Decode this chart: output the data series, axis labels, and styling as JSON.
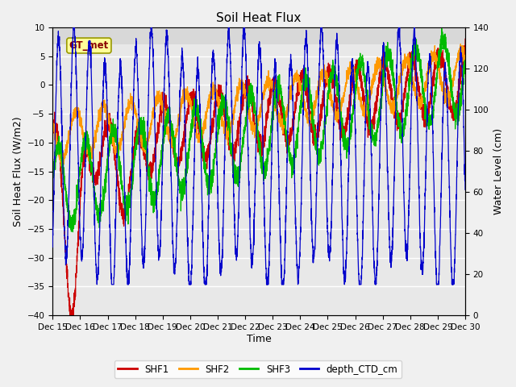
{
  "title": "Soil Heat Flux",
  "xlabel": "Time",
  "ylabel_left": "Soil Heat Flux (W/m2)",
  "ylabel_right": "Water Level (cm)",
  "ylim_left": [
    -40,
    10
  ],
  "ylim_right": [
    0,
    140
  ],
  "xlim": [
    0,
    360
  ],
  "annotation_text": "GT_met",
  "legend_labels": [
    "SHF1",
    "SHF2",
    "SHF3",
    "depth_CTD_cm"
  ],
  "colors": {
    "SHF1": "#cc0000",
    "SHF2": "#ff9900",
    "SHF3": "#00bb00",
    "depth_CTD_cm": "#0000cc"
  },
  "xtick_positions": [
    0,
    24,
    48,
    72,
    96,
    120,
    144,
    168,
    192,
    216,
    240,
    264,
    288,
    312,
    336,
    360
  ],
  "xtick_labels": [
    "Dec 15",
    "Dec 16",
    "Dec 17",
    "Dec 18",
    "Dec 19",
    "Dec 20",
    "Dec 21",
    "Dec 22",
    "Dec 23",
    "Dec 24",
    "Dec 25",
    "Dec 26",
    "Dec 27",
    "Dec 28",
    "Dec 29",
    "Dec 30"
  ],
  "yticks_left": [
    -40,
    -35,
    -30,
    -25,
    -20,
    -15,
    -10,
    -5,
    0,
    5,
    10
  ],
  "yticks_right": [
    0,
    20,
    40,
    60,
    80,
    100,
    120,
    140
  ],
  "plot_bg_color": "#e8e8e8",
  "upper_bg_color": "#d8d8d8",
  "grid_color": "#ffffff",
  "title_fontsize": 11,
  "axis_label_fontsize": 9,
  "tick_fontsize": 7.5,
  "legend_fontsize": 8.5
}
